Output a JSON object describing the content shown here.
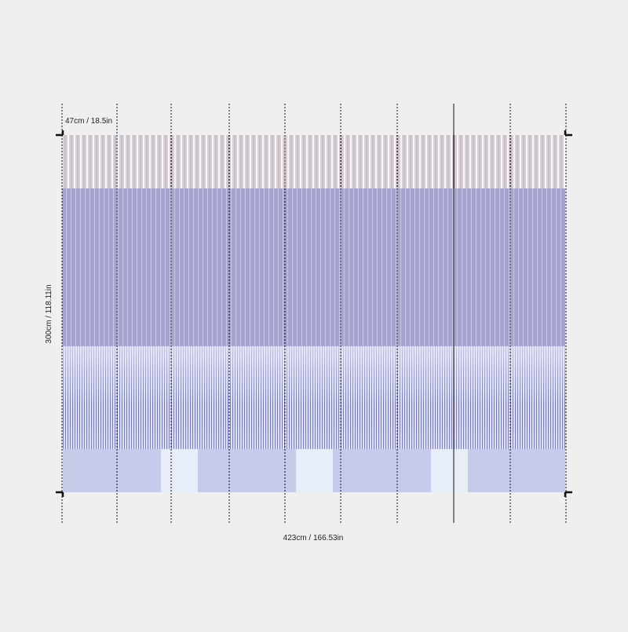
{
  "labels": {
    "panel_width": "47cm / 18.5in",
    "height": "300cm / 118.11in",
    "total_width": "423cm / 166.53in"
  }
}
